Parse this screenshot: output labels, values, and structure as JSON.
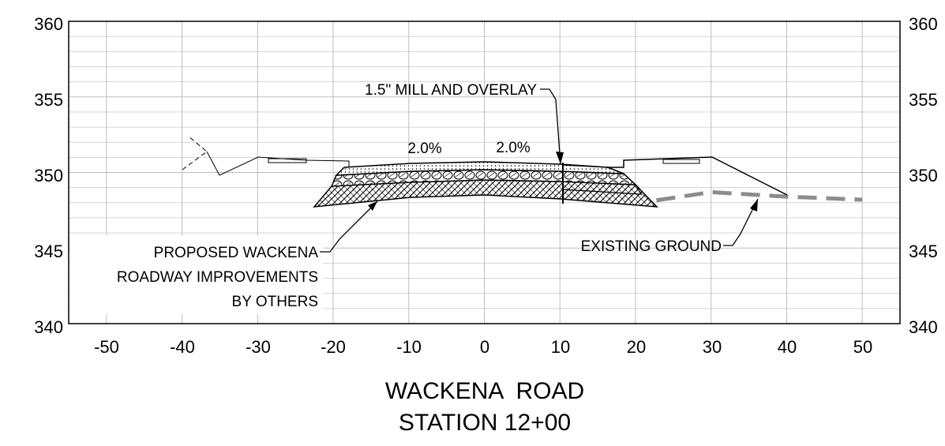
{
  "title": {
    "line1": "WACKENA  ROAD",
    "line2": "STATION 12+00"
  },
  "axes": {
    "x_ticks": [
      "-50",
      "-40",
      "-30",
      "-20",
      "-10",
      "0",
      "10",
      "20",
      "30",
      "40",
      "50"
    ],
    "y_ticks_left": [
      "360",
      "355",
      "350",
      "345",
      "340"
    ],
    "y_ticks_right": [
      "360",
      "355",
      "350",
      "345",
      "340"
    ]
  },
  "chart_data": {
    "type": "line",
    "xlim": [
      -55,
      55
    ],
    "ylim": [
      340,
      360
    ],
    "grid": true,
    "x_ticks": [
      -50,
      -40,
      -30,
      -20,
      -10,
      0,
      10,
      20,
      30,
      40,
      50
    ],
    "y_ticks": [
      340,
      345,
      350,
      355,
      360
    ],
    "series": [
      {
        "name": "EXISTING GROUND",
        "style": "dashed-gray",
        "x": [
          15.5,
          22,
          30,
          40,
          50
        ],
        "y": [
          349.0,
          348.1,
          348.7,
          348.4,
          348.2
        ]
      }
    ],
    "profiles": {
      "left_existing": {
        "x": [
          -40,
          -36,
          -34.8,
          -30,
          -24,
          -18
        ],
        "y": [
          350.2,
          352.0,
          349.8,
          351.1,
          350.9,
          350.8
        ]
      },
      "right_existing": {
        "x": [
          16,
          18,
          30,
          40
        ],
        "y": [
          350.9,
          351.0,
          351.1,
          348.5
        ]
      },
      "pavement_top": {
        "x": [
          -17,
          0,
          16
        ],
        "y": [
          350.35,
          350.7,
          350.5
        ]
      }
    }
  },
  "annotations": {
    "slope_left": "2.0%",
    "slope_right": "2.0%",
    "mill_overlay": "1.5\" MILL AND OVERLAY",
    "existing_ground": "EXISTING GROUND",
    "proposed_line1": "PROPOSED WACKENA",
    "proposed_line2": "ROADWAY IMPROVEMENTS",
    "proposed_line3": "BY OTHERS"
  },
  "colors": {
    "grid": "#bdbdbd",
    "ground": "#8c8c8c",
    "ink": "#000000"
  }
}
